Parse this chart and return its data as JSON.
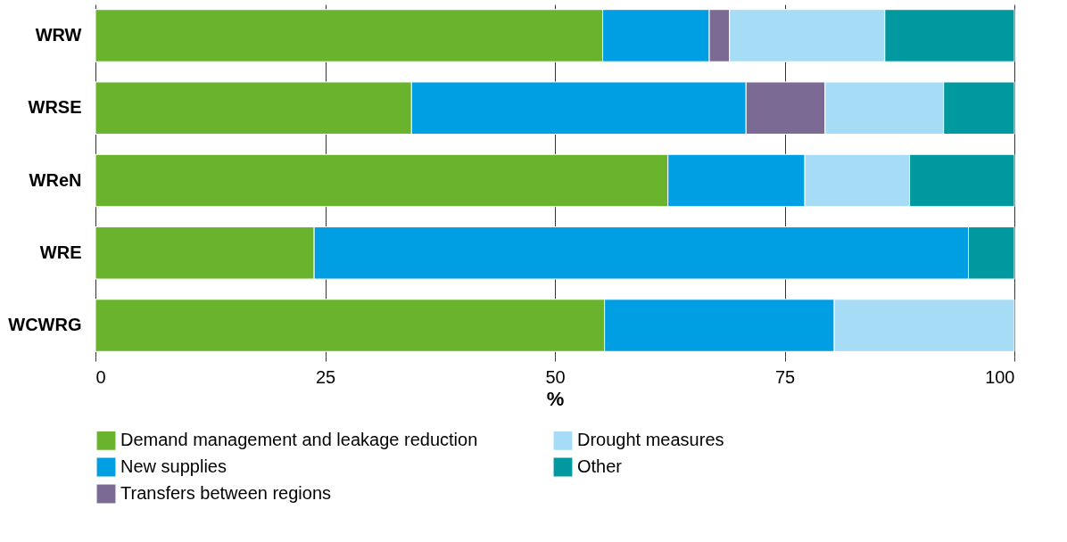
{
  "chart_data": {
    "type": "bar",
    "orientation": "horizontal",
    "stacked": true,
    "categories": [
      "WRW",
      "WRSE",
      "WReN",
      "WRE",
      "WCWRG"
    ],
    "series": [
      {
        "name": "Demand management and leakage reduction",
        "color": "#6ab42d",
        "values": [
          55.2,
          34.4,
          62.3,
          23.8,
          55.4
        ]
      },
      {
        "name": "New supplies",
        "color": "#009fe3",
        "values": [
          11.6,
          36.4,
          14.9,
          71.2,
          25.0
        ]
      },
      {
        "name": "Transfers between regions",
        "color": "#7b6a94",
        "values": [
          2.2,
          8.6,
          null,
          null,
          null
        ]
      },
      {
        "name": "Drought measures",
        "color": "#a6dcf5",
        "values": [
          16.9,
          12.9,
          11.4,
          null,
          19.6
        ]
      },
      {
        "name": "Other",
        "color": "#0099a0",
        "values": [
          14.1,
          7.7,
          11.4,
          5.0,
          null
        ]
      }
    ],
    "xlabel": "%",
    "xlim": [
      0,
      100
    ],
    "xticks": [
      0,
      25,
      50,
      75,
      100
    ],
    "grid": "x",
    "legend": "bottom"
  }
}
